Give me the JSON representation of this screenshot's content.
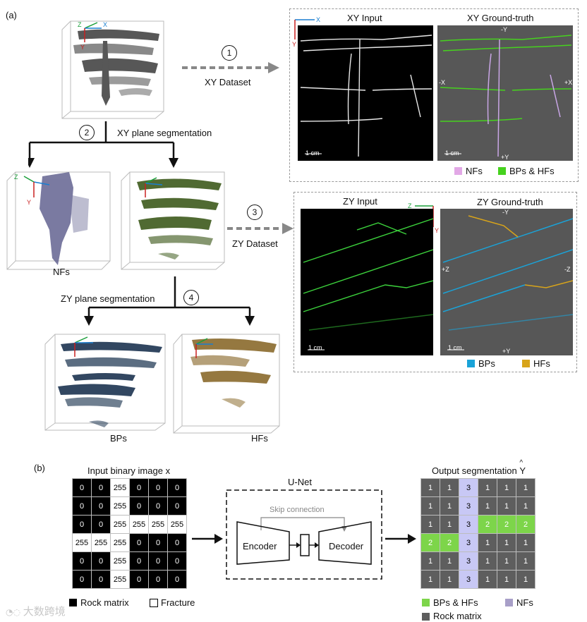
{
  "panel_a": {
    "label": "(a)",
    "steps": {
      "s1": {
        "num": "1",
        "label": "XY Dataset"
      },
      "s2": {
        "num": "2",
        "label": "XY plane segmentation"
      },
      "s3": {
        "num": "3",
        "label": "ZY Dataset"
      },
      "s4": {
        "num": "4",
        "label": "ZY plane segmentation"
      }
    },
    "volumes": {
      "nfs": "NFs",
      "bps": "BPs",
      "hfs": "HFs"
    },
    "axis": {
      "x": "X",
      "y": "Y",
      "z": "Z"
    },
    "xy": {
      "input_title": "XY Input",
      "gt_title": "XY Ground-truth",
      "scale": "1 cm",
      "dir_top": "-Y",
      "dir_bottom": "+Y",
      "dir_left": "-X",
      "dir_right": "+X",
      "legend": [
        {
          "label": "NFs",
          "color": "#e2a8e6"
        },
        {
          "label": "BPs & HFs",
          "color": "#46d21e"
        }
      ]
    },
    "zy": {
      "input_title": "ZY Input",
      "gt_title": "ZY Ground-truth",
      "scale": "1 cm",
      "dir_top": "-Y",
      "dir_bottom": "+Y",
      "dir_left": "+Z",
      "dir_right": "-Z",
      "legend": [
        {
          "label": "BPs",
          "color": "#1aa3d8"
        },
        {
          "label": "HFs",
          "color": "#d8a41a"
        }
      ]
    }
  },
  "panel_b": {
    "label": "(b)",
    "input_title": "Input binary image x",
    "input_grid": [
      [
        "0",
        "0",
        "255",
        "0",
        "0",
        "0"
      ],
      [
        "0",
        "0",
        "255",
        "0",
        "0",
        "0"
      ],
      [
        "0",
        "0",
        "255",
        "255",
        "255",
        "255"
      ],
      [
        "255",
        "255",
        "255",
        "0",
        "0",
        "0"
      ],
      [
        "0",
        "0",
        "255",
        "0",
        "0",
        "0"
      ],
      [
        "0",
        "0",
        "255",
        "0",
        "0",
        "0"
      ]
    ],
    "legend_left": [
      {
        "label": "Rock matrix",
        "color": "#000000"
      },
      {
        "label": "Fracture",
        "color": "#ffffff"
      }
    ],
    "unet": {
      "title": "U-Net",
      "skip": "Skip connection",
      "encoder": "Encoder",
      "decoder": "Decoder"
    },
    "output_title": "Output segmentation",
    "output_symbol": "Y",
    "output_grid": [
      [
        "1",
        "1",
        "3",
        "1",
        "1",
        "1"
      ],
      [
        "1",
        "1",
        "3",
        "1",
        "1",
        "1"
      ],
      [
        "1",
        "1",
        "3",
        "2",
        "2",
        "2"
      ],
      [
        "2",
        "2",
        "3",
        "1",
        "1",
        "1"
      ],
      [
        "1",
        "1",
        "3",
        "1",
        "1",
        "1"
      ],
      [
        "1",
        "1",
        "3",
        "1",
        "1",
        "1"
      ]
    ],
    "legend_right": [
      {
        "label": "BPs & HFs",
        "color": "#7dd54a"
      },
      {
        "label": "NFs",
        "color": "#a89fc8"
      },
      {
        "label": "Rock matrix",
        "color": "#5e5e5e"
      }
    ]
  },
  "watermark": "大数跨境"
}
